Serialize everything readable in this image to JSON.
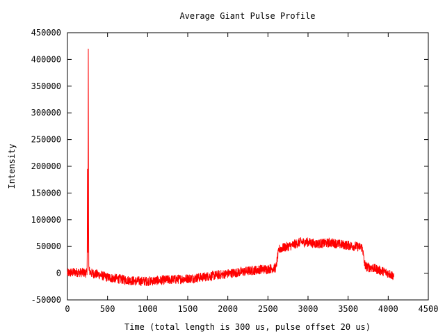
{
  "chart_data": {
    "type": "line",
    "title": "Average Giant Pulse Profile",
    "xlabel": "Time (total length is 300 us, pulse offset 20 us)",
    "ylabel": "Intensity",
    "xlim": [
      0,
      4500
    ],
    "ylim": [
      -50000,
      450000
    ],
    "xticks": [
      0,
      500,
      1000,
      1500,
      2000,
      2500,
      3000,
      3500,
      4000,
      4500
    ],
    "yticks": [
      -50000,
      0,
      50000,
      100000,
      150000,
      200000,
      250000,
      300000,
      350000,
      400000,
      450000
    ],
    "grid": false,
    "legend": "none",
    "series": [
      {
        "color": "#ff0000",
        "x": [
          0,
          100,
          200,
          245,
          250,
          255,
          260,
          265,
          270,
          280,
          300,
          400,
          500,
          600,
          700,
          800,
          900,
          1000,
          1100,
          1200,
          1300,
          1400,
          1500,
          1600,
          1700,
          1800,
          1900,
          2000,
          2100,
          2200,
          2300,
          2400,
          2500,
          2600,
          2620,
          2640,
          2700,
          2800,
          2900,
          3000,
          3100,
          3200,
          3300,
          3400,
          3500,
          3600,
          3680,
          3700,
          3720,
          3800,
          3900,
          4000,
          4070
        ],
        "y": [
          0,
          2000,
          1000,
          0,
          195000,
          5000,
          420000,
          10000,
          5000,
          3000,
          0,
          -3000,
          -8000,
          -10000,
          -12000,
          -14000,
          -15000,
          -15000,
          -14000,
          -13000,
          -12000,
          -11000,
          -10000,
          -9000,
          -7000,
          -5000,
          -3000,
          -1000,
          1000,
          3000,
          5000,
          7000,
          8000,
          10000,
          30000,
          45000,
          48000,
          52000,
          58000,
          58000,
          55000,
          56000,
          57000,
          54000,
          52000,
          50000,
          48000,
          20000,
          12000,
          10000,
          5000,
          0,
          -5000
        ],
        "noise_amplitude": 9000
      }
    ]
  }
}
